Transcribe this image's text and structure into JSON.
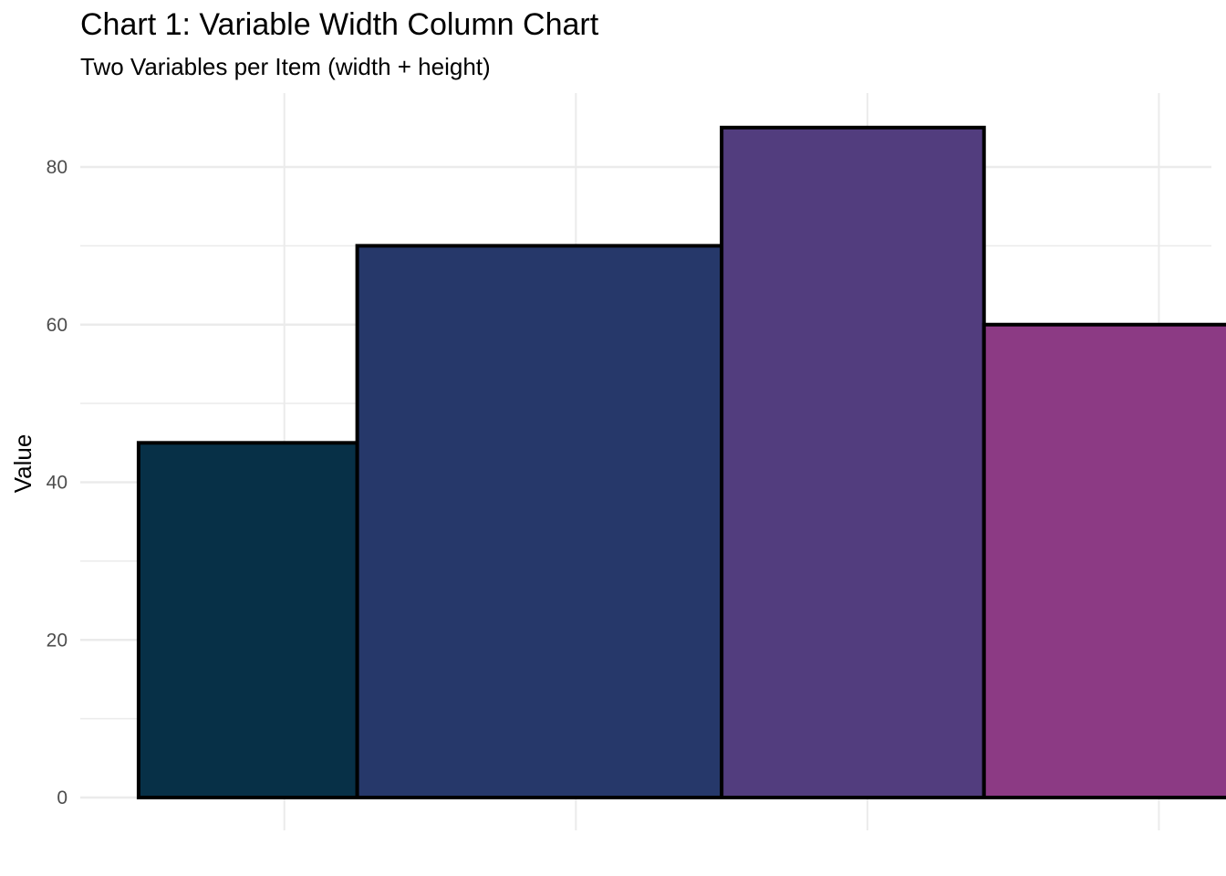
{
  "chart_data": {
    "type": "bar",
    "title": "Chart 1: Variable Width Column Chart",
    "subtitle": "Two Variables per Item (width + height)",
    "xlabel": "",
    "ylabel": "Value",
    "ylim": [
      0,
      88
    ],
    "xlim": [
      0,
      19.4
    ],
    "y_ticks": [
      0,
      20,
      40,
      60,
      80
    ],
    "x_gridlines": [
      3.5,
      8.5,
      13.5,
      18.5
    ],
    "grid": true,
    "legend": "none",
    "bars": [
      {
        "x_start": 1.0,
        "width": 3.75,
        "value": 45,
        "color": "#073047"
      },
      {
        "x_start": 4.75,
        "width": 6.25,
        "value": 70,
        "color": "#26386a"
      },
      {
        "x_start": 11.0,
        "width": 4.5,
        "value": 85,
        "color": "#523d7e"
      },
      {
        "x_start": 15.5,
        "width": 5.5,
        "value": 60,
        "color": "#8c3a84"
      }
    ],
    "bar_outline_color": "#000000",
    "grid_color": "#ebebeb"
  }
}
